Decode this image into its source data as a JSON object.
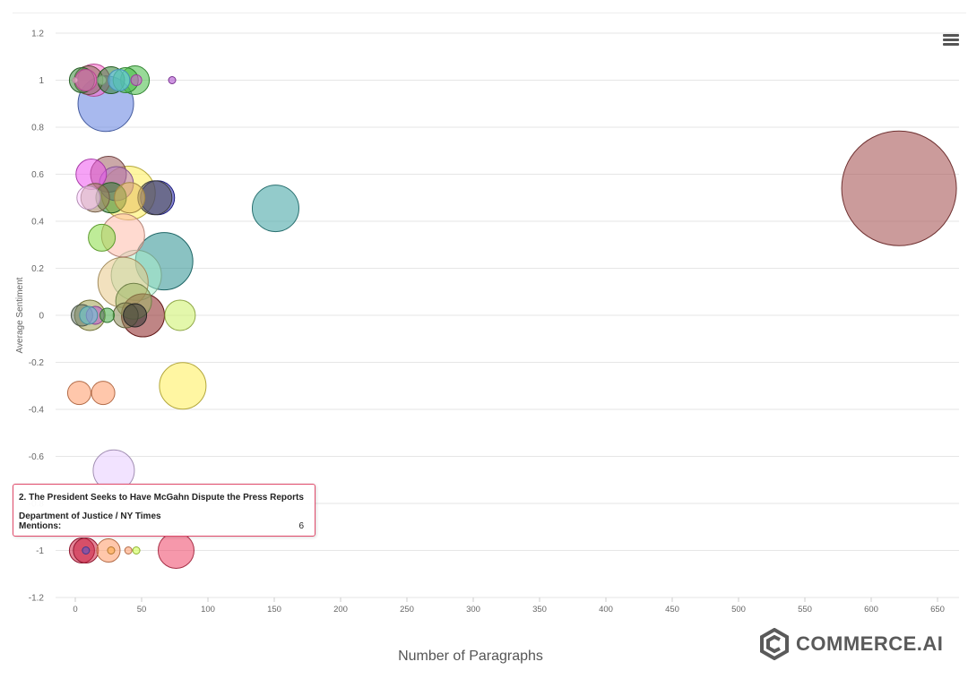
{
  "chart_data": {
    "type": "scatter",
    "variant": "bubble",
    "xlabel": "Number of Paragraphs",
    "ylabel": "Average Sentiment",
    "xlim": [
      -15,
      665
    ],
    "ylim": [
      -1.2,
      1.2
    ],
    "x_ticks": [
      "0",
      "50",
      "100",
      "150",
      "200",
      "250",
      "300",
      "350",
      "400",
      "450",
      "500",
      "550",
      "600",
      "650"
    ],
    "y_ticks": [
      "1.2",
      "1",
      "0.8",
      "0.6",
      "0.4",
      "0.2",
      "0",
      "-0.2",
      "-0.4",
      "-0.6",
      "-0.8",
      "-1",
      "-1.2"
    ],
    "grid": true,
    "legend": "none",
    "points": [
      {
        "x": 5,
        "y": 1.0,
        "r": 14,
        "color": "#3a8a3a"
      },
      {
        "x": 10,
        "y": 1.0,
        "r": 16,
        "color": "#8b6b5a"
      },
      {
        "x": 14,
        "y": 1.0,
        "r": 18,
        "color": "#ff66cc"
      },
      {
        "x": 20,
        "y": 1.0,
        "r": 5,
        "color": "#a0d8a0"
      },
      {
        "x": 27,
        "y": 1.0,
        "r": 15,
        "color": "#2f7f2f"
      },
      {
        "x": 33,
        "y": 1.0,
        "r": 12,
        "color": "#66ccff"
      },
      {
        "x": 38,
        "y": 1.0,
        "r": 14,
        "color": "#44bb44"
      },
      {
        "x": 45,
        "y": 1.0,
        "r": 16,
        "color": "#44bb44"
      },
      {
        "x": 46,
        "y": 1.0,
        "r": 6,
        "color": "#dd55dd"
      },
      {
        "x": 73,
        "y": 1.0,
        "r": 4,
        "color": "#aa44cc"
      },
      {
        "x": 0,
        "y": 1.0,
        "r": 3,
        "color": "#ffbbdd"
      },
      {
        "x": 8,
        "y": 1.0,
        "r": 12,
        "color": "#ff66cc"
      },
      {
        "x": 23,
        "y": 0.9,
        "r": 31,
        "color": "#6080e0"
      },
      {
        "x": 12,
        "y": 0.6,
        "r": 17,
        "color": "#ee55ee"
      },
      {
        "x": 25,
        "y": 0.6,
        "r": 20,
        "color": "#a06060"
      },
      {
        "x": 31,
        "y": 0.56,
        "r": 19,
        "color": "#b877cc"
      },
      {
        "x": 15,
        "y": 0.5,
        "r": 16,
        "color": "#a08060"
      },
      {
        "x": 10,
        "y": 0.5,
        "r": 13,
        "color": "#ffccff"
      },
      {
        "x": 40,
        "y": 0.52,
        "r": 30,
        "color": "#ffee55"
      },
      {
        "x": 27,
        "y": 0.5,
        "r": 17,
        "color": "#2f7f2f"
      },
      {
        "x": 41,
        "y": 0.5,
        "r": 17,
        "color": "#e8c060"
      },
      {
        "x": 62,
        "y": 0.5,
        "r": 19,
        "color": "#2222aa"
      },
      {
        "x": 60,
        "y": 0.5,
        "r": 19,
        "color": "#555555"
      },
      {
        "x": 151,
        "y": 0.455,
        "r": 26,
        "color": "#3aa0a0"
      },
      {
        "x": 20,
        "y": 0.33,
        "r": 15,
        "color": "#88dd44"
      },
      {
        "x": 36,
        "y": 0.34,
        "r": 24,
        "color": "#ffbbaa"
      },
      {
        "x": 67,
        "y": 0.23,
        "r": 32,
        "color": "#2a9090"
      },
      {
        "x": 46,
        "y": 0.17,
        "r": 28,
        "color": "#aaeecc"
      },
      {
        "x": 36,
        "y": 0.14,
        "r": 28,
        "color": "#e8c888"
      },
      {
        "x": 44,
        "y": 0.06,
        "r": 20,
        "color": "#a0b868"
      },
      {
        "x": 79,
        "y": 0.0,
        "r": 17,
        "color": "#ccf066"
      },
      {
        "x": 5,
        "y": 0.0,
        "r": 12,
        "color": "#6a7a6a"
      },
      {
        "x": 11,
        "y": 0.0,
        "r": 17,
        "color": "#a0a050"
      },
      {
        "x": 15,
        "y": 0.0,
        "r": 10,
        "color": "#bb55cc"
      },
      {
        "x": 10,
        "y": 0.0,
        "r": 10,
        "color": "#66ccdd"
      },
      {
        "x": 24,
        "y": 0.0,
        "r": 8,
        "color": "#44aa44"
      },
      {
        "x": 38,
        "y": 0.0,
        "r": 14,
        "color": "#888855"
      },
      {
        "x": 45,
        "y": 0.0,
        "r": 13,
        "color": "#333333"
      },
      {
        "x": 51,
        "y": 0.0,
        "r": 24,
        "color": "#8b2020"
      },
      {
        "x": 81,
        "y": -0.3,
        "r": 26,
        "color": "#ffee55"
      },
      {
        "x": 3,
        "y": -0.33,
        "r": 13,
        "color": "#ff9966"
      },
      {
        "x": 21,
        "y": -0.33,
        "r": 13,
        "color": "#ff9966"
      },
      {
        "x": 29,
        "y": -0.66,
        "r": 23,
        "color": "#e8ccff"
      },
      {
        "x": 5,
        "y": -1.0,
        "r": 14,
        "color": "#cc2244"
      },
      {
        "x": 8,
        "y": -1.0,
        "r": 14,
        "color": "#cc2244"
      },
      {
        "x": 8,
        "y": -1.0,
        "r": 4,
        "color": "#5555cc"
      },
      {
        "x": 25,
        "y": -1.0,
        "r": 13,
        "color": "#ff9966"
      },
      {
        "x": 27,
        "y": -1.0,
        "r": 4,
        "color": "#ffaa44"
      },
      {
        "x": 40,
        "y": -1.0,
        "r": 4,
        "color": "#ff9966"
      },
      {
        "x": 46,
        "y": -1.0,
        "r": 4,
        "color": "#ccff44"
      },
      {
        "x": 76,
        "y": -1.0,
        "r": 20,
        "color": "#ee4466"
      },
      {
        "x": 621,
        "y": 0.54,
        "r": 64,
        "color": "#a04848"
      }
    ]
  },
  "tooltip": {
    "title": "2. The President Seeks to Have McGahn Dispute the Press Reports",
    "source": "Department of Justice / NY Times",
    "metric_label": "Mentions:",
    "metric_value": "6"
  },
  "menu": {
    "icon": "hamburger-menu-icon"
  },
  "logo": {
    "text": "COMMERCE.AI",
    "icon": "commerce-ai-logo-icon"
  }
}
